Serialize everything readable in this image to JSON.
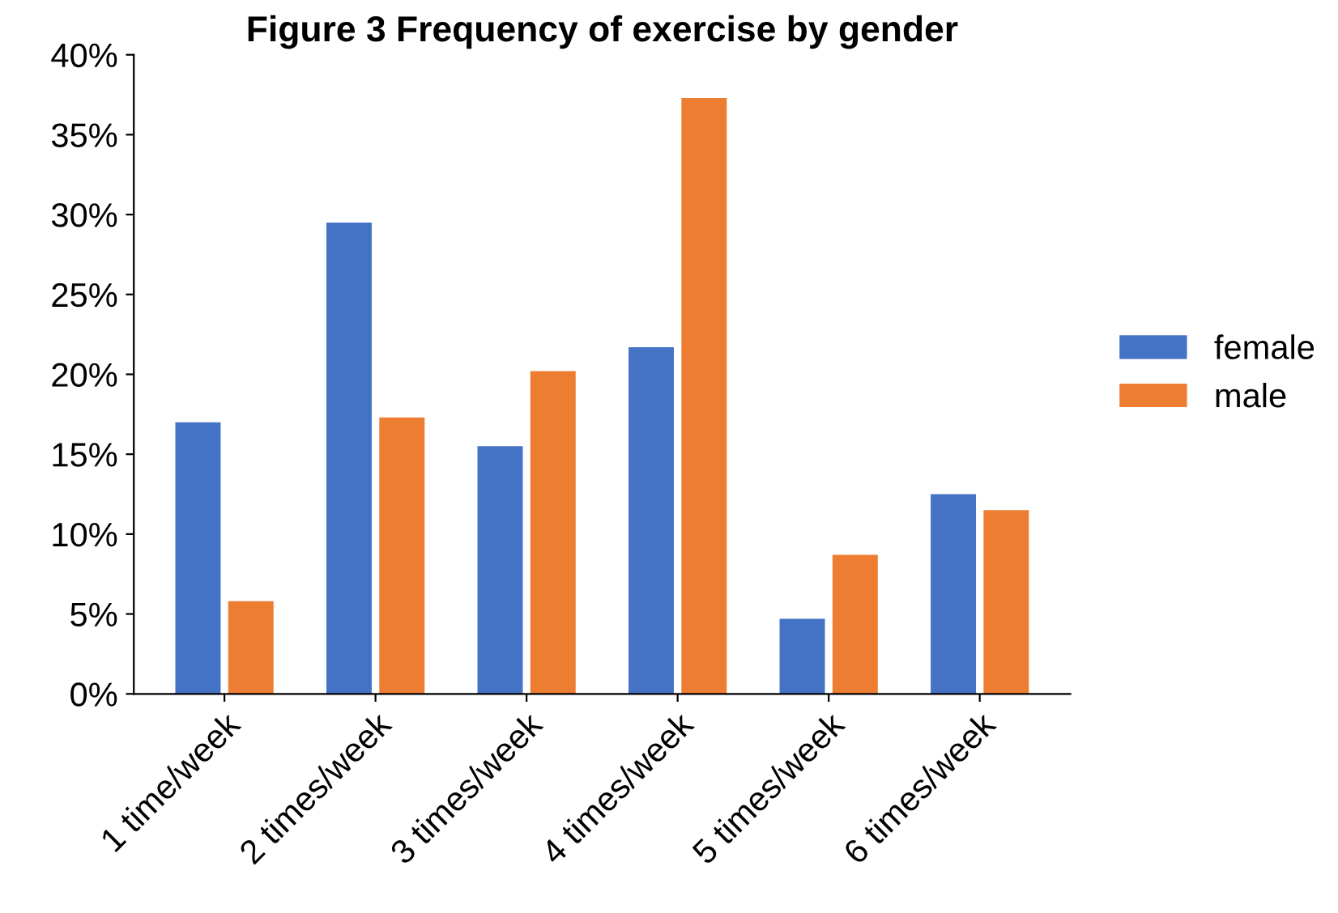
{
  "chart_data": {
    "type": "bar",
    "title": "Figure 3 Frequency of exercise by gender",
    "categories": [
      "1 time/week",
      "2 times/week",
      "3 times/week",
      "4 times/week",
      "5 times/week",
      "6 times/week"
    ],
    "series": [
      {
        "name": "female",
        "color": "#4472c4",
        "values": [
          17,
          29.5,
          15.5,
          21.7,
          4.7,
          12.5
        ]
      },
      {
        "name": "male",
        "color": "#ed7d31",
        "values": [
          5.8,
          17.3,
          20.2,
          37.3,
          8.7,
          11.5
        ]
      }
    ],
    "ylim": [
      0,
      40
    ],
    "yticks": [
      {
        "value": 0,
        "label": "0%"
      },
      {
        "value": 5,
        "label": "5%"
      },
      {
        "value": 10,
        "label": "10%"
      },
      {
        "value": 15,
        "label": "15%"
      },
      {
        "value": 20,
        "label": "20%"
      },
      {
        "value": 25,
        "label": "25%"
      },
      {
        "value": 30,
        "label": "30%"
      },
      {
        "value": 35,
        "label": "35%"
      },
      {
        "value": 40,
        "label": "40%"
      }
    ],
    "grid": false,
    "legend": "right"
  }
}
